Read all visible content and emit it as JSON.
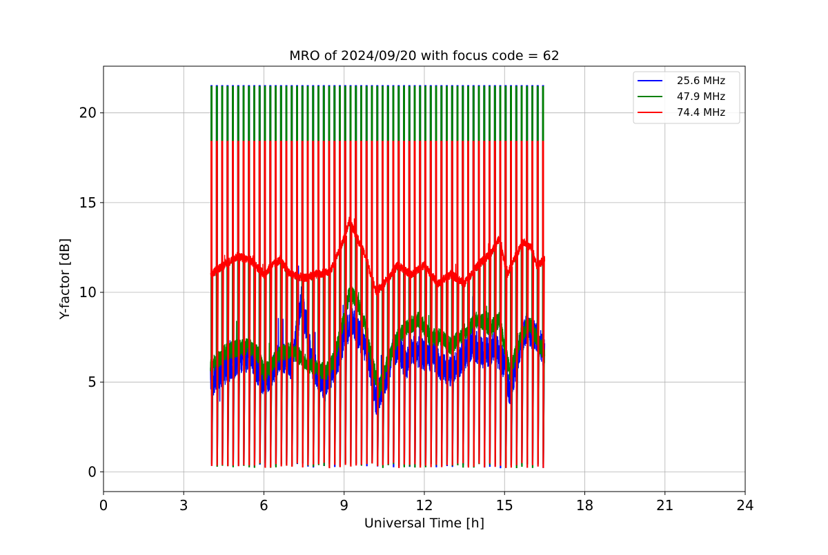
{
  "chart_data": {
    "type": "line",
    "title": "MRO of 2024/09/20 with focus code = 62",
    "xlabel": "Universal Time [h]",
    "ylabel": "Y-factor [dB]",
    "xlim": [
      0,
      24
    ],
    "ylim": [
      -1.1,
      22.6
    ],
    "xticks": [
      0,
      3,
      6,
      9,
      12,
      15,
      18,
      21,
      24
    ],
    "yticks": [
      0,
      5,
      10,
      15,
      20
    ],
    "grid": true,
    "legend_position": "top-right",
    "calibration": {
      "start": 4.0,
      "end": 16.5,
      "period": 0.2,
      "low_value": 0.2,
      "high_values": [
        21.5,
        21.45,
        18.4
      ]
    },
    "series": [
      {
        "name": "25.6 MHz",
        "color": "#0000ff",
        "noise": 0.9,
        "points": [
          [
            4.0,
            5.0
          ],
          [
            4.3,
            5.4
          ],
          [
            4.6,
            5.8
          ],
          [
            5.0,
            6.2
          ],
          [
            5.5,
            6.5
          ],
          [
            6.0,
            5.0
          ],
          [
            6.3,
            5.6
          ],
          [
            6.6,
            6.5
          ],
          [
            7.0,
            6.0
          ],
          [
            7.2,
            7.5
          ],
          [
            7.4,
            9.5
          ],
          [
            7.6,
            8.0
          ],
          [
            7.8,
            6.0
          ],
          [
            8.0,
            5.5
          ],
          [
            8.3,
            4.8
          ],
          [
            8.5,
            5.5
          ],
          [
            8.8,
            6.5
          ],
          [
            9.0,
            7.5
          ],
          [
            9.3,
            8.5
          ],
          [
            9.6,
            7.5
          ],
          [
            9.9,
            6.5
          ],
          [
            10.2,
            4.0
          ],
          [
            10.5,
            5.0
          ],
          [
            10.8,
            6.5
          ],
          [
            11.0,
            7.0
          ],
          [
            11.3,
            6.0
          ],
          [
            11.6,
            6.8
          ],
          [
            12.0,
            6.5
          ],
          [
            12.3,
            6.5
          ],
          [
            12.6,
            6.0
          ],
          [
            13.0,
            5.5
          ],
          [
            13.5,
            6.5
          ],
          [
            13.8,
            7.2
          ],
          [
            14.2,
            6.5
          ],
          [
            14.6,
            7.0
          ],
          [
            15.0,
            6.0
          ],
          [
            15.2,
            4.5
          ],
          [
            15.5,
            6.5
          ],
          [
            15.8,
            8.0
          ],
          [
            16.2,
            7.5
          ],
          [
            16.5,
            6.5
          ]
        ]
      },
      {
        "name": "47.9 MHz",
        "color": "#008000",
        "noise": 0.5,
        "points": [
          [
            4.0,
            5.8
          ],
          [
            4.3,
            6.3
          ],
          [
            4.6,
            6.7
          ],
          [
            5.0,
            6.9
          ],
          [
            5.5,
            7.0
          ],
          [
            5.8,
            6.5
          ],
          [
            6.0,
            5.5
          ],
          [
            6.3,
            6.0
          ],
          [
            6.6,
            6.6
          ],
          [
            7.0,
            6.8
          ],
          [
            7.3,
            6.5
          ],
          [
            7.6,
            6.0
          ],
          [
            8.0,
            5.8
          ],
          [
            8.3,
            5.5
          ],
          [
            8.6,
            6.2
          ],
          [
            9.0,
            8.5
          ],
          [
            9.2,
            10.0
          ],
          [
            9.5,
            9.5
          ],
          [
            9.8,
            8.0
          ],
          [
            10.0,
            6.5
          ],
          [
            10.3,
            4.5
          ],
          [
            10.6,
            6.0
          ],
          [
            11.0,
            7.5
          ],
          [
            11.5,
            8.2
          ],
          [
            11.8,
            8.5
          ],
          [
            12.2,
            7.5
          ],
          [
            12.6,
            7.5
          ],
          [
            13.0,
            7.0
          ],
          [
            13.5,
            7.8
          ],
          [
            14.0,
            8.5
          ],
          [
            14.5,
            8.0
          ],
          [
            14.8,
            8.5
          ],
          [
            15.2,
            5.5
          ],
          [
            15.6,
            7.5
          ],
          [
            15.9,
            8.3
          ],
          [
            16.2,
            7.5
          ],
          [
            16.5,
            6.5
          ]
        ]
      },
      {
        "name": "74.4 MHz",
        "color": "#ff0000",
        "noise": 0.25,
        "points": [
          [
            4.0,
            11.0
          ],
          [
            4.5,
            11.5
          ],
          [
            5.0,
            12.0
          ],
          [
            5.5,
            11.8
          ],
          [
            6.0,
            11.0
          ],
          [
            6.3,
            11.5
          ],
          [
            6.6,
            11.8
          ],
          [
            7.0,
            11.0
          ],
          [
            7.5,
            10.8
          ],
          [
            8.0,
            11.0
          ],
          [
            8.5,
            11.2
          ],
          [
            9.0,
            13.0
          ],
          [
            9.2,
            14.0
          ],
          [
            9.5,
            13.0
          ],
          [
            9.8,
            12.0
          ],
          [
            10.2,
            10.0
          ],
          [
            10.5,
            10.5
          ],
          [
            11.0,
            11.5
          ],
          [
            11.5,
            11.0
          ],
          [
            12.0,
            11.5
          ],
          [
            12.5,
            10.5
          ],
          [
            13.0,
            11.0
          ],
          [
            13.5,
            10.5
          ],
          [
            14.0,
            11.5
          ],
          [
            14.5,
            12.2
          ],
          [
            14.8,
            13.0
          ],
          [
            15.1,
            11.0
          ],
          [
            15.4,
            12.0
          ],
          [
            15.7,
            12.8
          ],
          [
            16.0,
            12.5
          ],
          [
            16.2,
            11.5
          ],
          [
            16.5,
            11.8
          ]
        ]
      }
    ]
  }
}
